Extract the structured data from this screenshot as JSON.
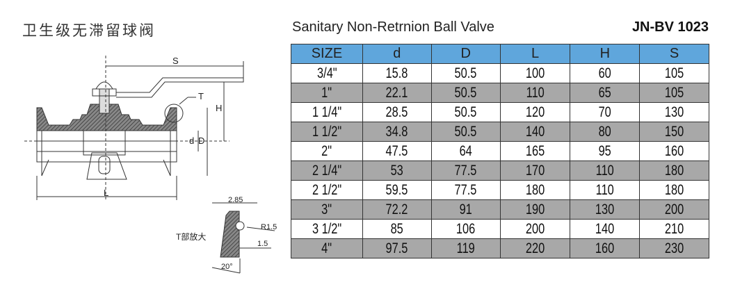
{
  "title_cn": "卫生级无滞留球阀",
  "title_en": "Sanitary Non-Retrnion Ball Valve",
  "model": "JN-BV 1023",
  "table": {
    "headers": [
      "SIZE",
      "d",
      "D",
      "L",
      "H",
      "S"
    ],
    "rows": [
      [
        "3/4\"",
        "15.8",
        "50.5",
        "100",
        "60",
        "105"
      ],
      [
        "1\"",
        "22.1",
        "50.5",
        "110",
        "65",
        "105"
      ],
      [
        "1 1/4\"",
        "28.5",
        "50.5",
        "120",
        "70",
        "130"
      ],
      [
        "1 1/2\"",
        "34.8",
        "50.5",
        "140",
        "80",
        "150"
      ],
      [
        "2\"",
        "47.5",
        "64",
        "165",
        "95",
        "160"
      ],
      [
        "2 1/4\"",
        "53",
        "77.5",
        "170",
        "110",
        "180"
      ],
      [
        "2 1/2\"",
        "59.5",
        "77.5",
        "180",
        "110",
        "180"
      ],
      [
        "3\"",
        "72.2",
        "91",
        "190",
        "130",
        "200"
      ],
      [
        "3 1/2\"",
        "85",
        "106",
        "200",
        "140",
        "210"
      ],
      [
        "4\"",
        "97.5",
        "119",
        "220",
        "160",
        "230"
      ]
    ],
    "colors": {
      "header": "#5fa6dc",
      "alt_row": "#a8a8a8"
    }
  },
  "drawing": {
    "labels": {
      "S": "S",
      "T": "T",
      "H": "H",
      "d": "d",
      "D": "D",
      "L": "L"
    },
    "detail": {
      "caption": "T部放大",
      "w": "2.85",
      "r": "R1.5",
      "depth": "1.5",
      "angle": "20°"
    }
  }
}
